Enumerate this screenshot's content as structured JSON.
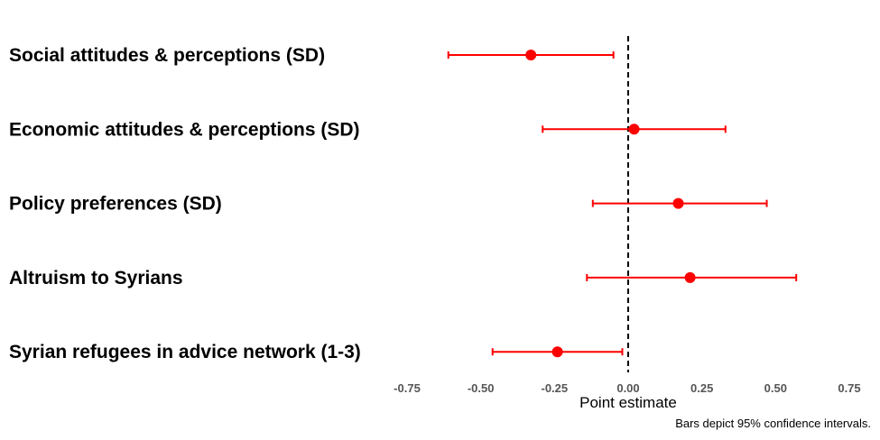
{
  "chart_data": {
    "type": "scatter",
    "subtype": "coefficient-plot",
    "orientation": "horizontal",
    "categories": [
      "Social attitudes & perceptions (SD)",
      "Economic attitudes & perceptions (SD)",
      "Policy preferences (SD)",
      "Altruism to Syrians",
      "Syrian refugees in advice network (1-3)"
    ],
    "series": [
      {
        "estimates": [
          -0.33,
          0.02,
          0.17,
          0.21,
          -0.24
        ],
        "ci_low": [
          -0.61,
          -0.29,
          -0.12,
          -0.14,
          -0.46
        ],
        "ci_high": [
          -0.05,
          0.33,
          0.47,
          0.57,
          -0.02
        ]
      }
    ],
    "xlabel": "Point estimate",
    "caption": "Bars depict 95% confidence intervals.",
    "xlim": [
      -0.75,
      0.75
    ],
    "xticks": [
      -0.75,
      -0.5,
      -0.25,
      0.0,
      0.25,
      0.5,
      0.75
    ],
    "xtick_labels": [
      "-0.75",
      "-0.50",
      "-0.25",
      "0.00",
      "0.25",
      "0.50",
      "0.75"
    ],
    "reference_line": 0,
    "grid": false,
    "colors": {
      "marker": "#ff0000",
      "reference_line": "#000000"
    }
  }
}
